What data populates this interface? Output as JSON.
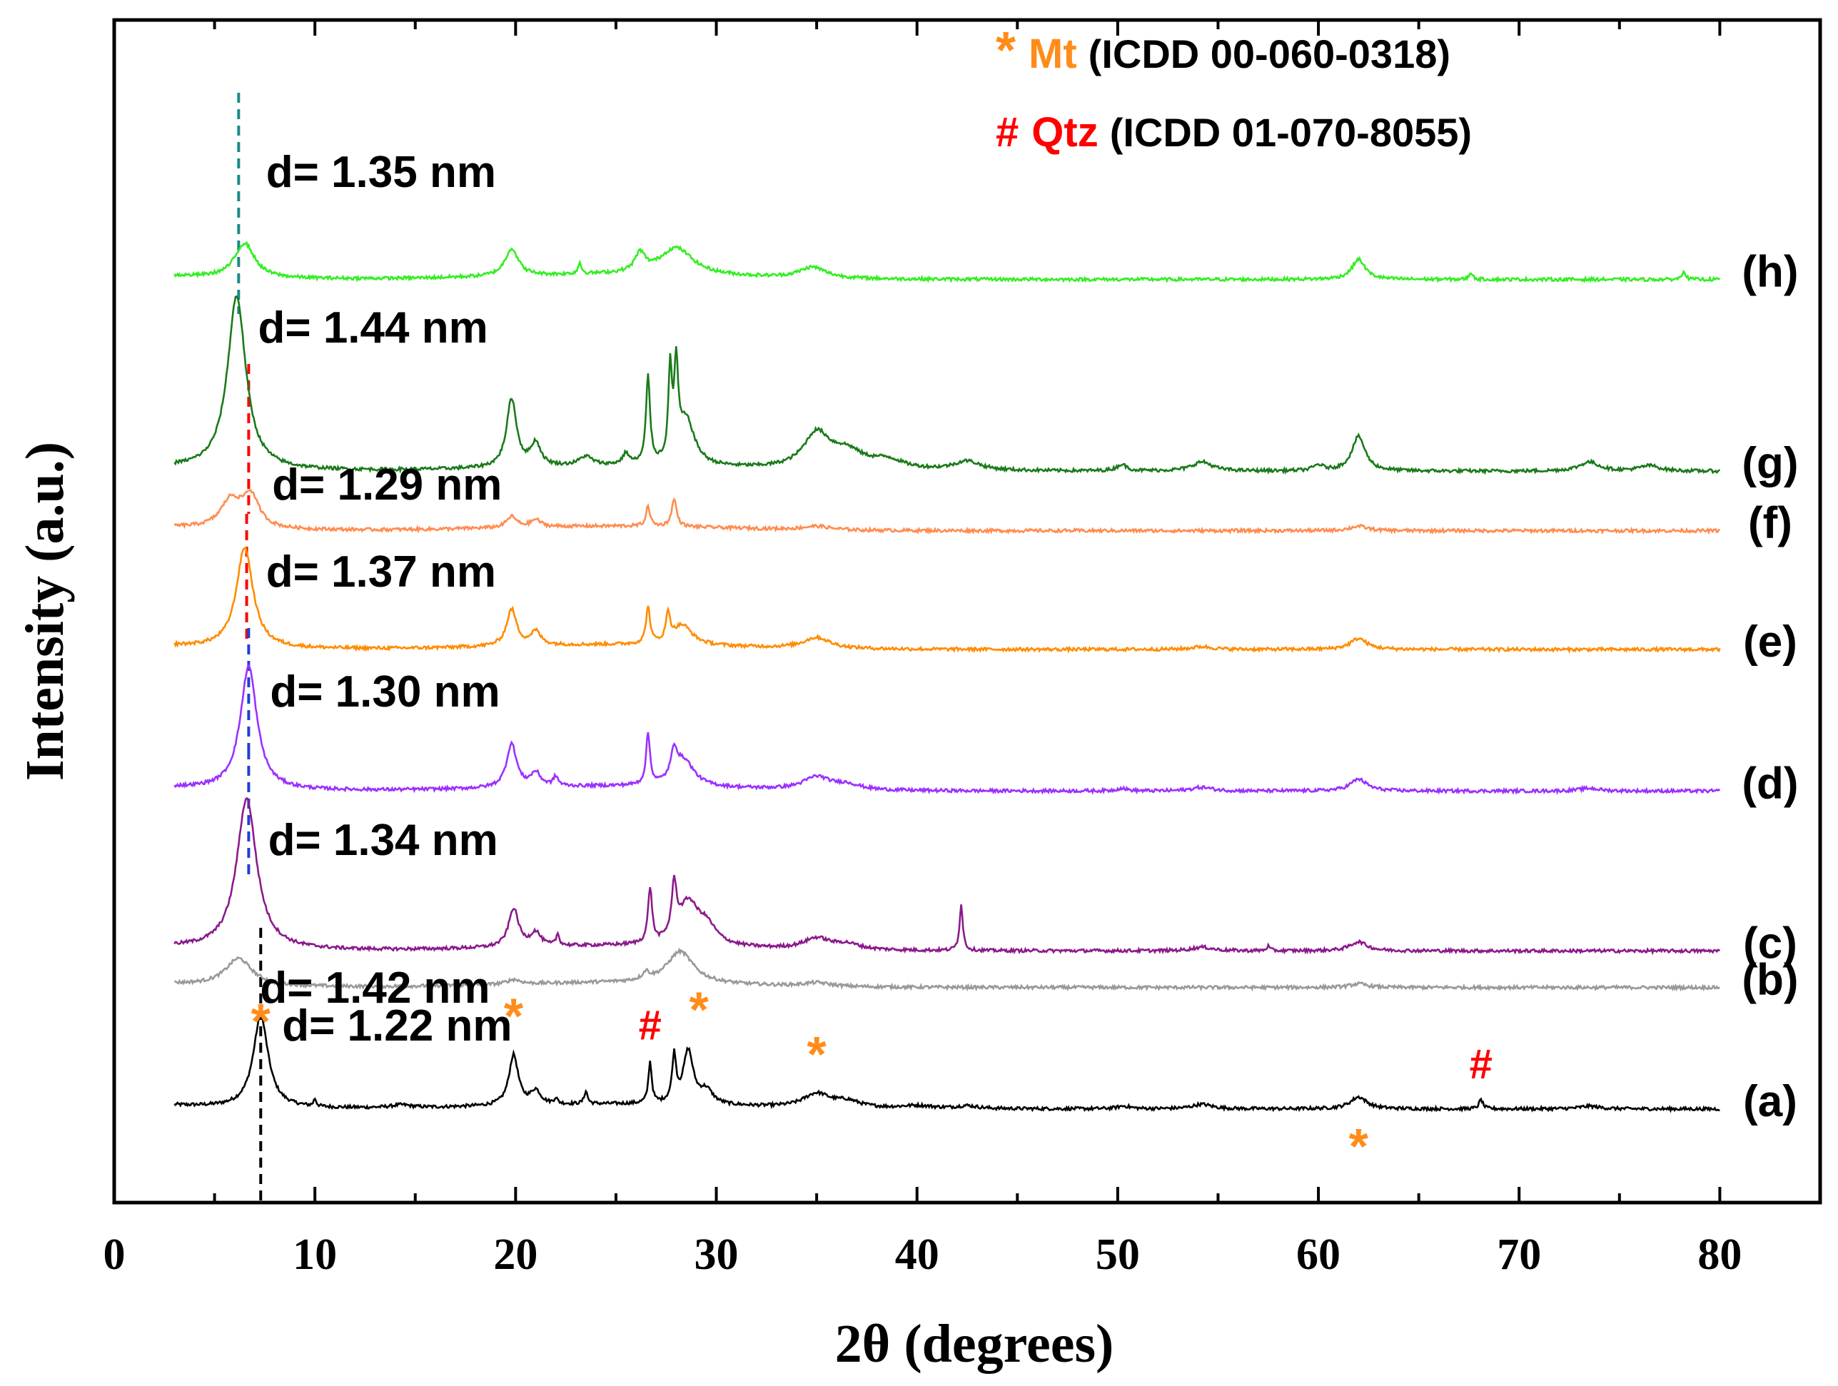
{
  "chart_data": {
    "type": "line",
    "title": "",
    "xlabel": "2θ (degrees)",
    "ylabel": "Intensity (a.u.)",
    "xlim": [
      0,
      85
    ],
    "xticks": [
      0,
      10,
      20,
      30,
      40,
      50,
      60,
      70,
      80
    ],
    "xtick_labels": [
      "0",
      "10",
      "20",
      "30",
      "40",
      "50",
      "60",
      "70",
      "80"
    ],
    "grid": false,
    "legend": [
      {
        "symbol": "*",
        "name": "Mt",
        "ref": "(ICDD 00-060-0318)",
        "color": "#ff8c1a"
      },
      {
        "symbol": "#",
        "name": "Qtz",
        "ref": "(ICDD 01-070-8055)",
        "color": "#ff0000"
      }
    ],
    "series": [
      {
        "id": "a",
        "label": "(a)",
        "color": "#000000",
        "baseline": 1.22,
        "d_label": "d= 1.22 nm",
        "d_peak_x": 7.3,
        "line_color": "#000000",
        "peaks": [
          [
            7.3,
            1.0,
            0.45
          ],
          [
            10.0,
            0.08,
            0.08
          ],
          [
            14.3,
            0.03,
            0.6
          ],
          [
            19.9,
            0.55,
            0.28
          ],
          [
            21.0,
            0.15,
            0.3
          ],
          [
            22.0,
            0.06,
            0.1
          ],
          [
            23.5,
            0.14,
            0.1
          ],
          [
            26.7,
            0.45,
            0.1
          ],
          [
            27.9,
            0.5,
            0.12
          ],
          [
            28.6,
            0.58,
            0.3
          ],
          [
            29.5,
            0.15,
            0.4
          ],
          [
            35.0,
            0.15,
            0.8
          ],
          [
            36.5,
            0.07,
            0.8
          ],
          [
            40.0,
            0.03,
            1.0
          ],
          [
            42.5,
            0.03,
            0.6
          ],
          [
            50.3,
            0.03,
            0.4
          ],
          [
            54.2,
            0.05,
            0.6
          ],
          [
            62.0,
            0.13,
            0.5
          ],
          [
            68.1,
            0.1,
            0.12
          ],
          [
            73.5,
            0.03,
            0.6
          ]
        ]
      },
      {
        "id": "b",
        "label": "(b)",
        "color": "#999999",
        "baseline": 2.55,
        "d_label": "d= 1.42 nm",
        "d_peak_x": 6.2,
        "line_color": "#000000",
        "peaks": [
          [
            6.2,
            0.3,
            0.8
          ],
          [
            19.9,
            0.05,
            0.4
          ],
          [
            26.5,
            0.08,
            0.2
          ],
          [
            28.2,
            0.35,
            0.8
          ],
          [
            35.0,
            0.04,
            0.8
          ],
          [
            62.0,
            0.04,
            0.5
          ]
        ]
      },
      {
        "id": "c",
        "label": "(c)",
        "color": "#8b1a8b",
        "baseline": 2.95,
        "d_label": "d= 1.34 nm",
        "d_peak_x": 6.6,
        "line_color": "#1f3fd6",
        "peaks": [
          [
            6.6,
            1.65,
            0.6
          ],
          [
            19.9,
            0.42,
            0.3
          ],
          [
            21.0,
            0.15,
            0.3
          ],
          [
            22.1,
            0.12,
            0.1
          ],
          [
            26.7,
            0.6,
            0.12
          ],
          [
            27.9,
            0.55,
            0.15
          ],
          [
            28.6,
            0.45,
            0.6
          ],
          [
            29.5,
            0.2,
            0.6
          ],
          [
            35.0,
            0.12,
            0.8
          ],
          [
            36.5,
            0.06,
            0.8
          ],
          [
            42.2,
            0.5,
            0.1
          ],
          [
            54.2,
            0.04,
            0.6
          ],
          [
            57.5,
            0.05,
            0.1
          ],
          [
            62.0,
            0.1,
            0.5
          ]
        ]
      },
      {
        "id": "d",
        "label": "(d)",
        "color": "#9b30ff",
        "baseline": 4.7,
        "d_label": "d= 1.30 nm",
        "d_peak_x": 6.7,
        "line_color": "#1f3fd6",
        "peaks": [
          [
            6.7,
            1.35,
            0.5
          ],
          [
            19.8,
            0.48,
            0.3
          ],
          [
            21.0,
            0.15,
            0.3
          ],
          [
            22.0,
            0.1,
            0.15
          ],
          [
            26.6,
            0.55,
            0.12
          ],
          [
            27.9,
            0.3,
            0.2
          ],
          [
            28.4,
            0.28,
            0.6
          ],
          [
            35.0,
            0.14,
            0.8
          ],
          [
            36.5,
            0.06,
            0.8
          ],
          [
            50.2,
            0.03,
            0.3
          ],
          [
            54.2,
            0.04,
            0.6
          ],
          [
            62.0,
            0.13,
            0.5
          ],
          [
            73.5,
            0.03,
            0.6
          ]
        ]
      },
      {
        "id": "e",
        "label": "(e)",
        "color": "#ff8c00",
        "baseline": 6.25,
        "d_label": "d= 1.37 nm",
        "d_peak_x": 6.5,
        "line_color": "#ff0000",
        "peaks": [
          [
            6.5,
            1.1,
            0.5
          ],
          [
            19.8,
            0.4,
            0.3
          ],
          [
            21.0,
            0.15,
            0.3
          ],
          [
            26.6,
            0.4,
            0.12
          ],
          [
            27.6,
            0.3,
            0.12
          ],
          [
            28.3,
            0.22,
            0.6
          ],
          [
            35.0,
            0.12,
            0.8
          ],
          [
            54.2,
            0.03,
            0.6
          ],
          [
            62.0,
            0.12,
            0.5
          ]
        ]
      },
      {
        "id": "f",
        "label": "(f)",
        "color": "#ff8c50",
        "baseline": 7.55,
        "d_label": "d= 1.29 nm",
        "d_peak_x": 6.8,
        "line_color": "#ff0000",
        "peaks": [
          [
            5.8,
            0.3,
            0.6
          ],
          [
            6.8,
            0.35,
            0.5
          ],
          [
            19.8,
            0.12,
            0.3
          ],
          [
            21.0,
            0.08,
            0.3
          ],
          [
            26.6,
            0.22,
            0.12
          ],
          [
            27.9,
            0.3,
            0.15
          ],
          [
            35.0,
            0.04,
            0.8
          ],
          [
            62.0,
            0.05,
            0.5
          ]
        ]
      },
      {
        "id": "g",
        "label": "(g)",
        "color": "#1a7a1a",
        "baseline": 8.2,
        "d_label": "d= 1.44 nm",
        "d_peak_x": 6.1,
        "line_color": "#1a8a8a",
        "peaks": [
          [
            6.1,
            1.9,
            0.55
          ],
          [
            19.8,
            0.75,
            0.3
          ],
          [
            21.0,
            0.25,
            0.3
          ],
          [
            23.5,
            0.1,
            0.4
          ],
          [
            25.5,
            0.12,
            0.2
          ],
          [
            26.6,
            0.95,
            0.12
          ],
          [
            27.7,
            0.95,
            0.1
          ],
          [
            28.0,
            0.95,
            0.12
          ],
          [
            28.5,
            0.5,
            0.5
          ],
          [
            35.0,
            0.38,
            0.8
          ],
          [
            36.5,
            0.18,
            1.0
          ],
          [
            38.5,
            0.1,
            1.0
          ],
          [
            42.5,
            0.1,
            0.8
          ],
          [
            50.2,
            0.07,
            0.3
          ],
          [
            54.2,
            0.1,
            0.6
          ],
          [
            60.0,
            0.06,
            0.3
          ],
          [
            62.0,
            0.38,
            0.4
          ],
          [
            73.5,
            0.1,
            0.6
          ],
          [
            76.5,
            0.06,
            0.6
          ]
        ]
      },
      {
        "id": "h",
        "label": "(h)",
        "color": "#33ee22",
        "baseline": 10.3,
        "d_label": "d= 1.35 nm",
        "d_peak_x": 6.5,
        "line_color": "#1a8a8a",
        "peaks": [
          [
            6.5,
            0.38,
            0.6
          ],
          [
            19.8,
            0.3,
            0.4
          ],
          [
            23.2,
            0.12,
            0.1
          ],
          [
            26.2,
            0.2,
            0.3
          ],
          [
            28.0,
            0.3,
            1.0
          ],
          [
            34.8,
            0.12,
            0.8
          ],
          [
            62.0,
            0.22,
            0.4
          ],
          [
            67.6,
            0.08,
            0.1
          ],
          [
            78.2,
            0.1,
            0.1
          ]
        ]
      }
    ],
    "markers": [
      {
        "symbol": "*",
        "x": 7.3,
        "color": "#ff8c1a"
      },
      {
        "symbol": "*",
        "x": 19.9,
        "color": "#ff8c1a"
      },
      {
        "symbol": "#",
        "x": 26.7,
        "color": "#ff0000"
      },
      {
        "symbol": "*",
        "x": 28.6,
        "color": "#ff8c1a"
      },
      {
        "symbol": "*",
        "x": 35.0,
        "color": "#ff8c1a"
      },
      {
        "symbol": "*",
        "x": 62.0,
        "color": "#ff8c1a"
      },
      {
        "symbol": "#",
        "x": 68.1,
        "color": "#ff0000"
      }
    ]
  }
}
